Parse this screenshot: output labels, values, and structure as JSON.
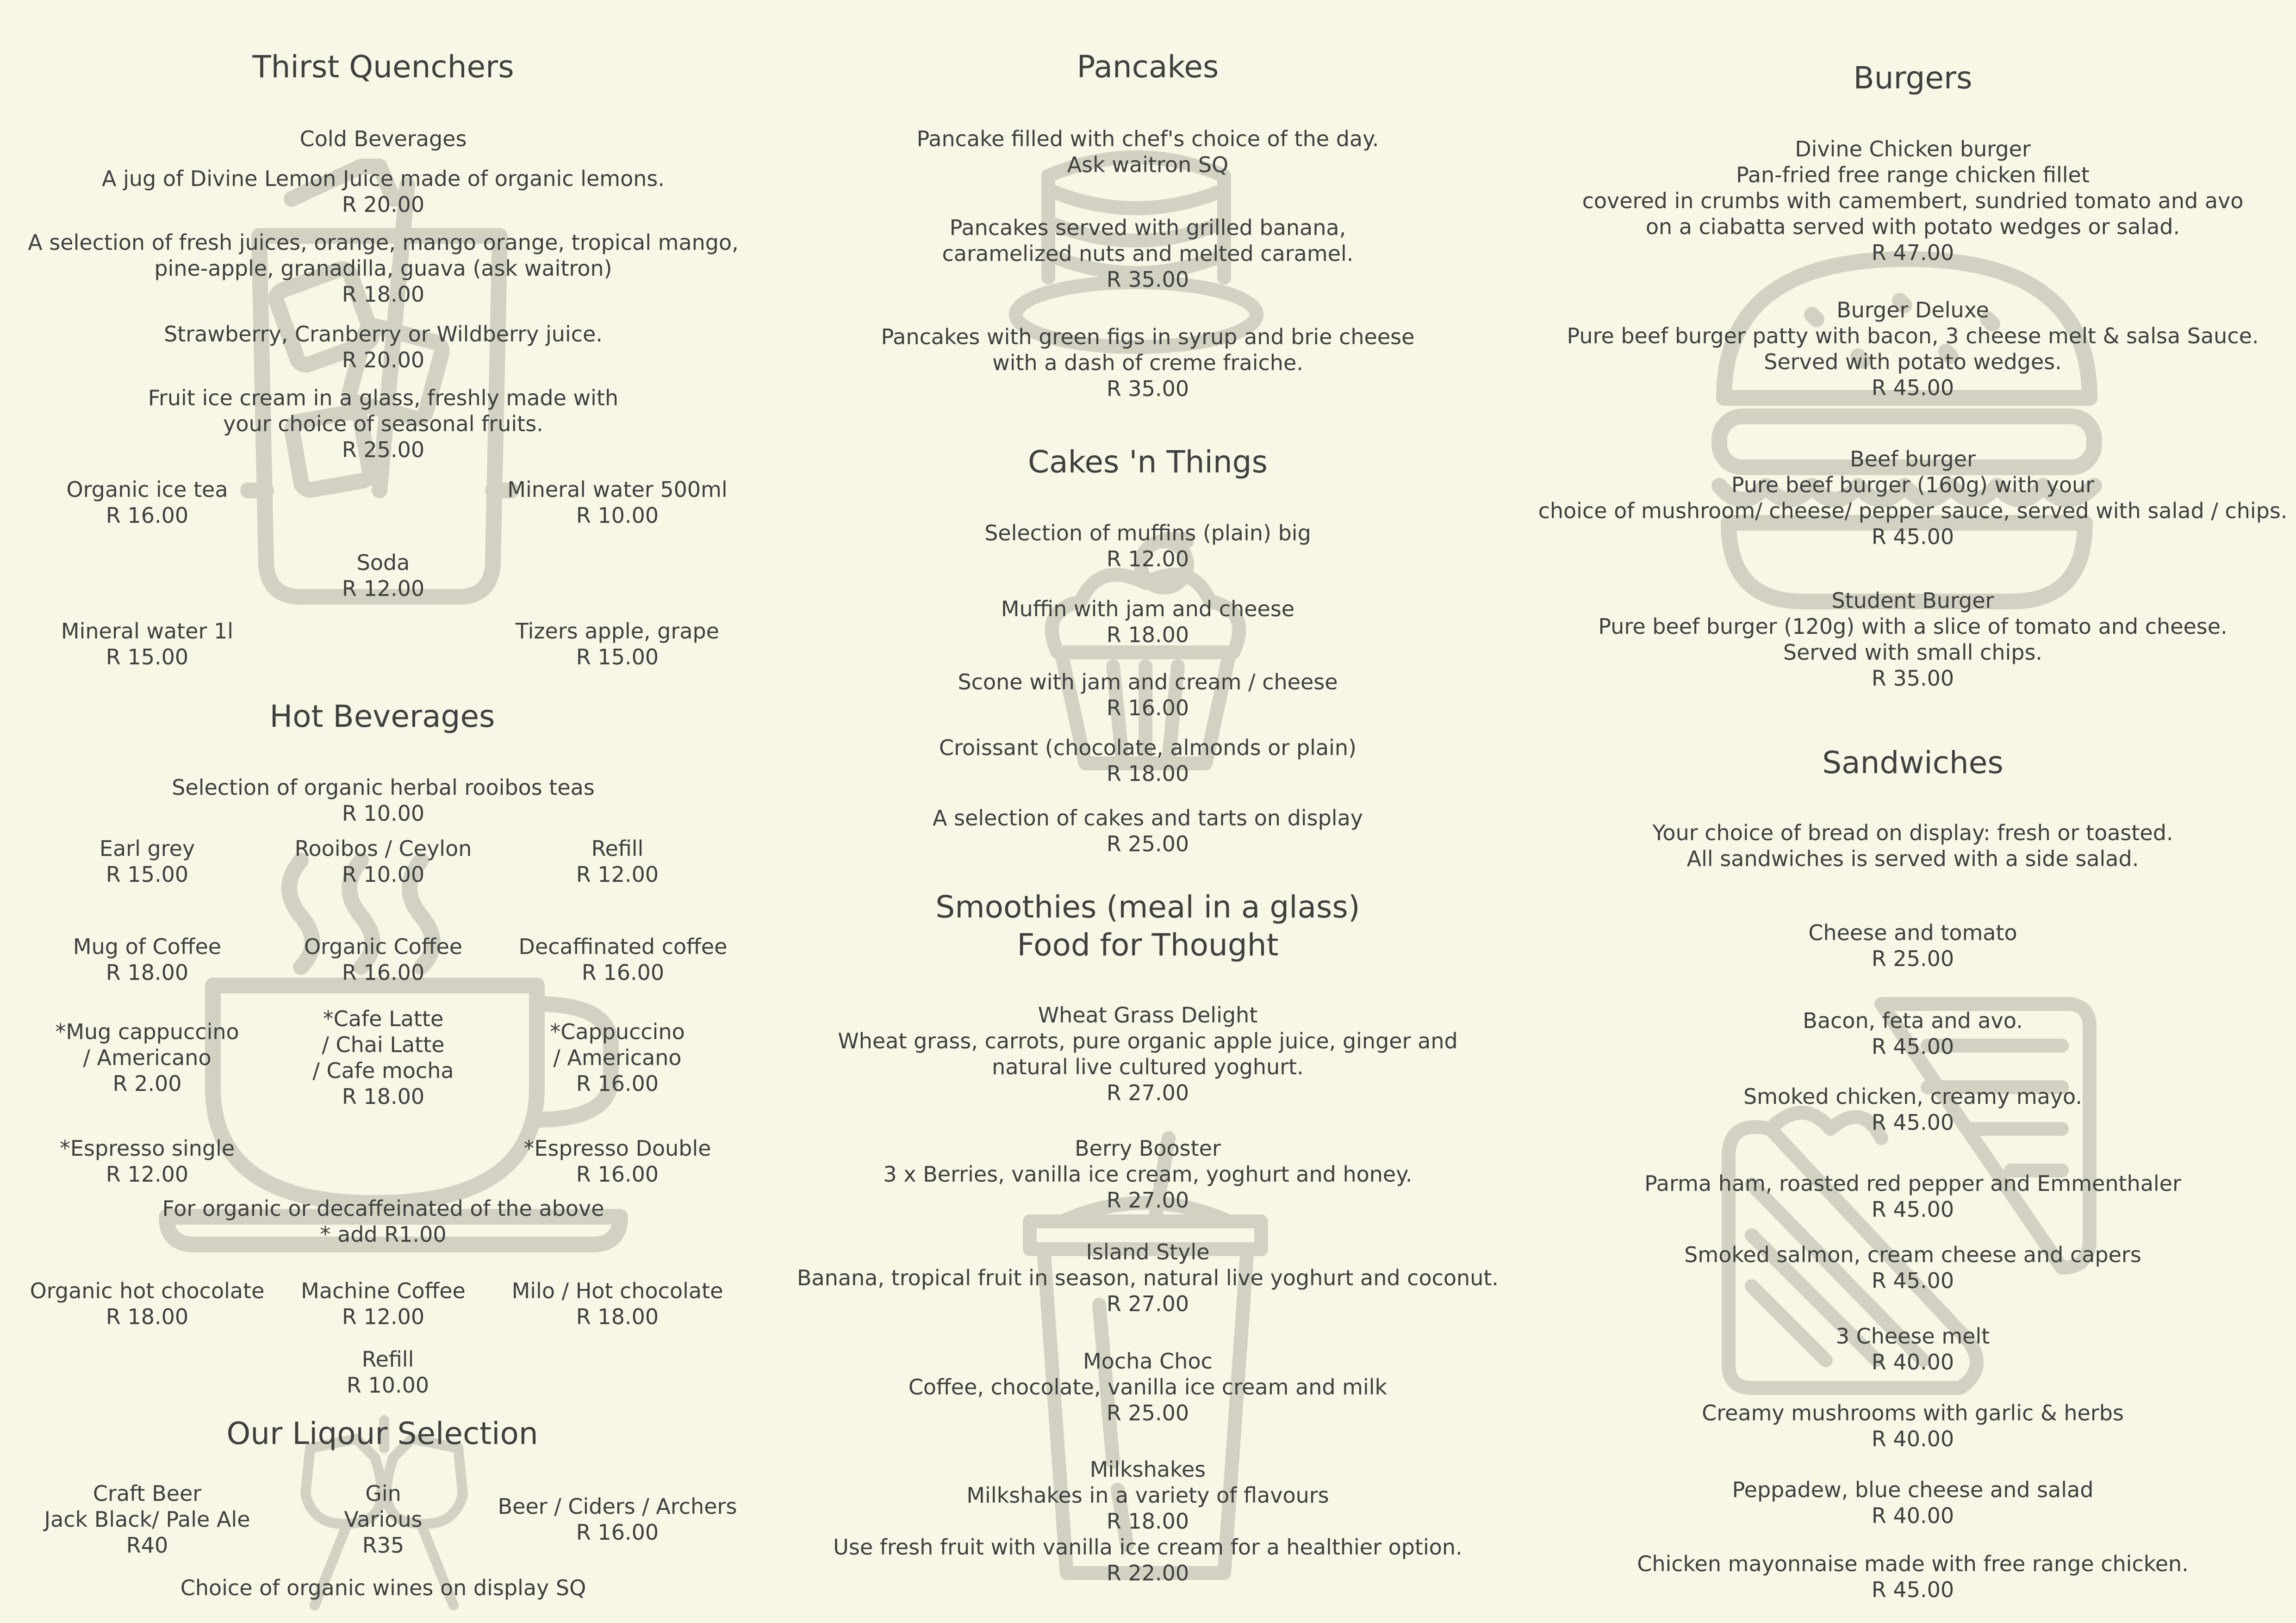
{
  "thirst": {
    "title": "Thirst Quenchers",
    "cold_title": "Cold Beverages",
    "lemon": {
      "name": "A jug of Divine Lemon Juice made of organic lemons.",
      "price": "R 20.00"
    },
    "fresh": {
      "line1": "A selection of fresh juices, orange, mango orange, tropical mango,",
      "line2": "pine-apple, granadilla, guava (ask waitron)",
      "price": "R 18.00"
    },
    "berry": {
      "name": "Strawberry, Cranberry or Wildberry juice.",
      "price": "R 20.00"
    },
    "icecream": {
      "line1": "Fruit ice cream in a glass, freshly made with",
      "line2": "your choice of seasonal fruits.",
      "price": "R 25.00"
    },
    "icetea": {
      "name": "Organic ice tea",
      "price": "R 16.00"
    },
    "water500": {
      "name": "Mineral water 500ml",
      "price": "R 10.00"
    },
    "soda": {
      "name": "Soda",
      "price": "R 12.00"
    },
    "water1l": {
      "name": "Mineral water 1l",
      "price": "R 15.00"
    },
    "tizers": {
      "name": "Tizers apple, grape",
      "price": "R 15.00"
    }
  },
  "hot": {
    "title": "Hot Beverages",
    "rooibos_sel": {
      "name": "Selection of organic herbal rooibos teas",
      "price": "R 10.00"
    },
    "earlgrey": {
      "name": "Earl grey",
      "price": "R 15.00"
    },
    "ceylon": {
      "name": "Rooibos / Ceylon",
      "price": "R 10.00"
    },
    "refill1": {
      "name": "Refill",
      "price": "R 12.00"
    },
    "mug": {
      "name": "Mug of Coffee",
      "price": "R 18.00"
    },
    "organic_coffee": {
      "name": "Organic Coffee",
      "price": "R 16.00"
    },
    "decaf": {
      "name": "Decaffinated coffee",
      "price": "R 16.00"
    },
    "mug_cap": {
      "line1": "*Mug cappuccino",
      "line2": "/ Americano",
      "price": "R 2.00"
    },
    "latte": {
      "line1": "*Cafe Latte",
      "line2": "/ Chai Latte",
      "line3": "/ Cafe mocha",
      "price": "R 18.00"
    },
    "cappuccino": {
      "line1": "*Cappuccino",
      "line2": "/ Americano",
      "price": "R 16.00"
    },
    "esp_single": {
      "name": "*Espresso single",
      "price": "R 12.00"
    },
    "esp_double": {
      "name": "*Espresso Double",
      "price": "R 16.00"
    },
    "organic_note": {
      "line1": "For organic or decaffeinated of the above",
      "line2": "* add R1.00"
    },
    "hot_choc": {
      "name": "Organic hot chocolate",
      "price": "R 18.00"
    },
    "machine": {
      "name": "Machine Coffee",
      "price": "R 12.00"
    },
    "milo": {
      "name": "Milo / Hot chocolate",
      "price": "R 18.00"
    },
    "refill2": {
      "name": "Refill",
      "price": "R 10.00"
    }
  },
  "liquor": {
    "title": "Our Liqour Selection",
    "craft": {
      "line1": "Craft Beer",
      "line2": "Jack Black/ Pale Ale",
      "price": "R40"
    },
    "gin": {
      "line1": "Gin",
      "line2": "Various",
      "price": "R35"
    },
    "beer": {
      "name": "Beer / Ciders / Archers",
      "price": "R 16.00"
    },
    "wines": "Choice of organic wines on display SQ"
  },
  "pancakes": {
    "title": "Pancakes",
    "p1": {
      "line1": "Pancake filled with chef's choice of the day.",
      "line2": "Ask waitron SQ"
    },
    "p2": {
      "line1": "Pancakes served with grilled banana,",
      "line2": "caramelized nuts and melted caramel.",
      "price": "R 35.00"
    },
    "p3": {
      "line1": "Pancakes with green figs in syrup and brie cheese",
      "line2": "with a dash of creme fraiche.",
      "price": "R 35.00"
    }
  },
  "cakes": {
    "title": "Cakes 'n Things",
    "muffins": {
      "name": "Selection of muffins (plain) big",
      "price": "R 12.00"
    },
    "muffin_jam": {
      "name": "Muffin with jam and cheese",
      "price": "R 18.00"
    },
    "scone": {
      "name": "Scone with jam and cream / cheese",
      "price": "R 16.00"
    },
    "croissant": {
      "name": "Croissant (chocolate, almonds or plain)",
      "price": "R 18.00"
    },
    "tarts": {
      "name": "A selection of cakes and tarts on display",
      "price": "R 25.00"
    }
  },
  "smoothies": {
    "title1": "Smoothies (meal in a glass)",
    "title2": "Food for Thought",
    "wheat": {
      "name": "Wheat Grass Delight",
      "line1": "Wheat grass, carrots, pure organic apple juice, ginger and",
      "line2": "natural live cultured yoghurt.",
      "price": "R 27.00"
    },
    "booster": {
      "name": "Berry Booster",
      "line1": "3 x Berries, vanilla ice cream, yoghurt and honey.",
      "price": "R 27.00"
    },
    "island": {
      "name": "Island Style",
      "line1": "Banana, tropical fruit in season, natural live yoghurt and coconut.",
      "price": "R 27.00"
    },
    "mocha": {
      "name": "Mocha Choc",
      "line1": "Coffee, chocolate, vanilla ice cream and milk",
      "price": "R 25.00"
    },
    "milkshakes": {
      "name": "Milkshakes",
      "line1": "Milkshakes in a variety of flavours",
      "price1": "R 18.00",
      "line2": "Use fresh fruit with vanilla ice cream for a healthier option.",
      "price2": "R 22.00"
    }
  },
  "burgers": {
    "title": "Burgers",
    "chicken": {
      "name": "Divine Chicken burger",
      "line1": "Pan-fried free range chicken fillet",
      "line2": "covered in crumbs with camembert, sundried tomato and avo",
      "line3": "on a ciabatta served with potato wedges or salad.",
      "price": "R 47.00"
    },
    "deluxe": {
      "name": "Burger Deluxe",
      "line1": "Pure beef burger patty with bacon, 3 cheese melt & salsa Sauce.",
      "line2": "Served with potato wedges.",
      "price": "R 45.00"
    },
    "beef": {
      "name": "Beef burger",
      "line1": "Pure beef burger (160g) with your",
      "line2": "choice of mushroom/ cheese/ pepper sauce, served with salad / chips.",
      "price": "R 45.00"
    },
    "student": {
      "name": "Student Burger",
      "line1": "Pure beef burger (120g) with a slice of tomato and cheese.",
      "line2": "Served with small chips.",
      "price": "R 35.00"
    }
  },
  "sandwiches": {
    "title": "Sandwiches",
    "intro1": "Your choice of bread on display: fresh or toasted.",
    "intro2": "All sandwiches is served with a side salad.",
    "items": [
      {
        "name": "Cheese and tomato",
        "price": "R 25.00"
      },
      {
        "name": "Bacon, feta and avo.",
        "price": "R 45.00"
      },
      {
        "name": "Smoked chicken, creamy mayo.",
        "price": "R 45.00"
      },
      {
        "name": "Parma ham, roasted red pepper and Emmenthaler",
        "price": "R 45.00"
      },
      {
        "name": "Smoked salmon, cream cheese and capers",
        "price": "R 45.00"
      },
      {
        "name": "3 Cheese melt",
        "price": "R 40.00"
      },
      {
        "name": "Creamy mushrooms with garlic & herbs",
        "price": "R 40.00"
      },
      {
        "name": "Peppadew, blue cheese and salad",
        "price": "R 40.00"
      },
      {
        "name": "Chicken mayonnaise made with free range chicken.",
        "price": "R 45.00"
      }
    ]
  },
  "colors": {
    "background": "#f8f6e5",
    "text": "#3f3f3f",
    "illustration": "#d3d1c2"
  },
  "icons": [
    "iced-drink-icon",
    "coffee-cup-icon",
    "wine-glasses-icon",
    "pancake-stack-icon",
    "muffin-icon",
    "smoothie-cup-icon",
    "burger-icon",
    "sandwich-icon"
  ]
}
